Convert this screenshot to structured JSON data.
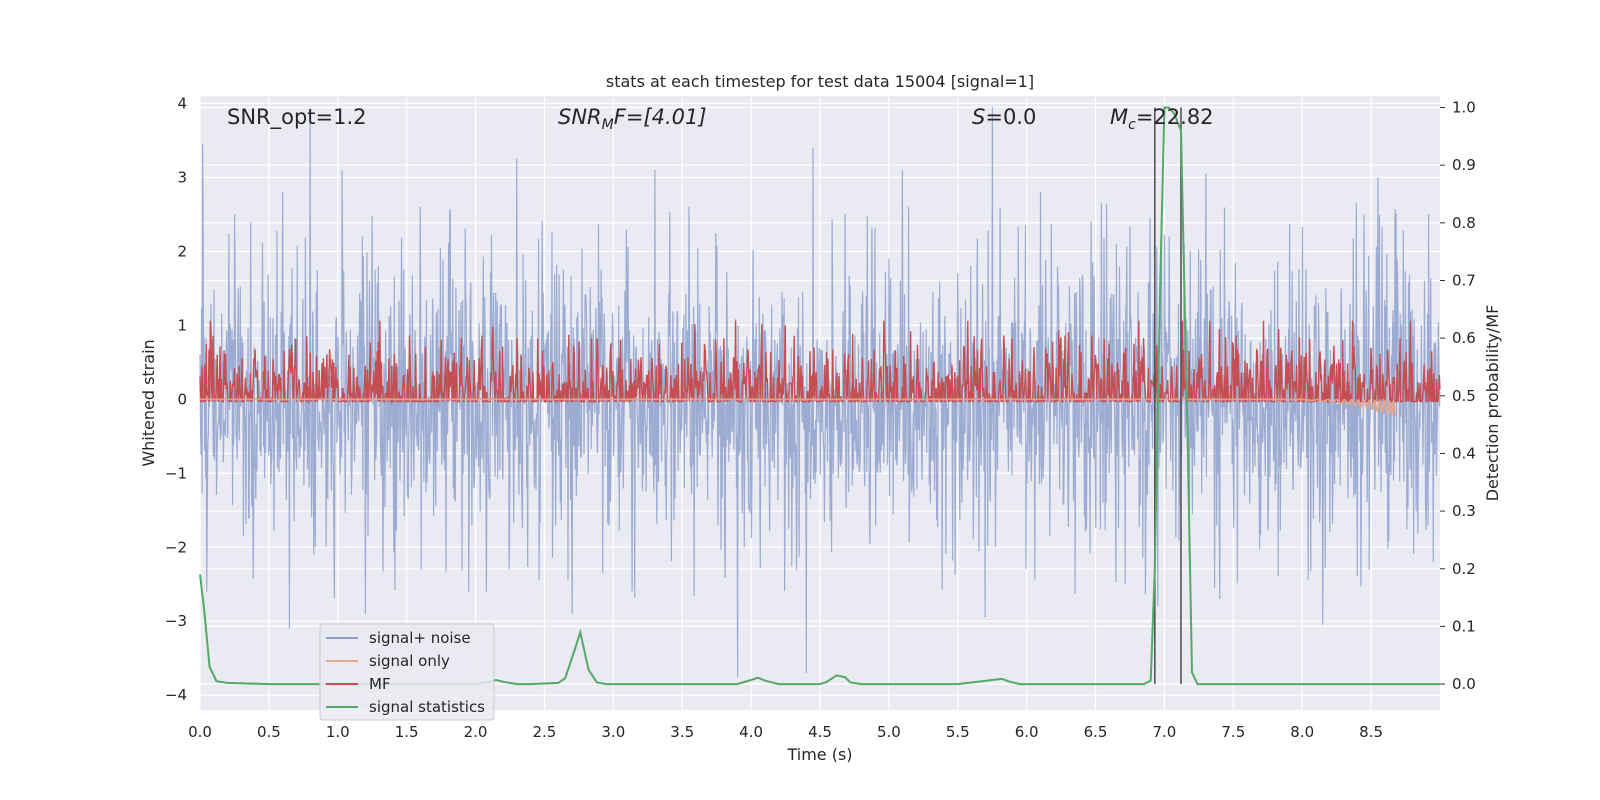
{
  "chart_data": {
    "type": "line",
    "title": "stats at each timestep for test data 15004 [signal=1]",
    "xlabel": "Time (s)",
    "ylabel": "Whitened strain",
    "y2label": "Detection probability/MF",
    "xlim": [
      0.0,
      9.0
    ],
    "ylim": [
      -4.2,
      4.1
    ],
    "y2lim": [
      -0.045,
      1.02
    ],
    "xticks": [
      "0.0",
      "0.5",
      "1.0",
      "1.5",
      "2.0",
      "2.5",
      "3.0",
      "3.5",
      "4.0",
      "4.5",
      "5.0",
      "5.5",
      "6.0",
      "6.5",
      "7.0",
      "7.5",
      "8.0",
      "8.5"
    ],
    "yticks": [
      "4",
      "3",
      "2",
      "1",
      "0",
      "−1",
      "−2",
      "−3",
      "−4"
    ],
    "y2ticks": [
      "1.0",
      "0.9",
      "0.8",
      "0.7",
      "0.6",
      "0.5",
      "0.4",
      "0.3",
      "0.2",
      "0.1",
      "0.0"
    ],
    "grid": true,
    "legend_position": "lower-left",
    "annotations": {
      "snr_opt": "SNR_opt=1.2",
      "snr_mf_var": "SNR",
      "snr_mf_sub": "M",
      "snr_mf_rest": "F=[4.01]",
      "s_var": "S",
      "s_rest": "=0.0",
      "mc_var": "M",
      "mc_sub": "c",
      "mc_rest": "=22.82"
    },
    "detection_window": [
      6.93,
      7.12
    ],
    "series": [
      {
        "name": "signal+ noise",
        "color": "#8da0cb",
        "axis": "left",
        "kind": "noise",
        "upper_peaks": [
          [
            0.02,
            3.45
          ],
          [
            0.25,
            2.5
          ],
          [
            0.6,
            2.8
          ],
          [
            0.8,
            3.75
          ],
          [
            1.03,
            3.1
          ],
          [
            1.6,
            2.6
          ],
          [
            2.3,
            3.25
          ],
          [
            3.3,
            3.1
          ],
          [
            4.45,
            3.4
          ],
          [
            5.1,
            3.1
          ],
          [
            5.75,
            3.95
          ],
          [
            6.1,
            2.8
          ],
          [
            7.3,
            3.05
          ],
          [
            8.55,
            3.0
          ],
          [
            8.95,
            1.8
          ]
        ],
        "lower_peaks": [
          [
            0.05,
            -2.6
          ],
          [
            0.65,
            -3.1
          ],
          [
            1.2,
            -2.9
          ],
          [
            1.95,
            -2.6
          ],
          [
            2.7,
            -2.9
          ],
          [
            3.9,
            -3.75
          ],
          [
            4.4,
            -3.7
          ],
          [
            5.7,
            -2.95
          ],
          [
            6.95,
            -2.8
          ],
          [
            7.4,
            -2.7
          ],
          [
            8.15,
            -3.05
          ],
          [
            8.95,
            -2.2
          ]
        ]
      },
      {
        "name": "signal only",
        "color": "#e8a58a",
        "axis": "left",
        "kind": "chirp",
        "x_range": [
          7.8,
          8.68
        ],
        "min_value": -0.22
      },
      {
        "name": "MF",
        "color": "#c44e52",
        "axis": "left",
        "kind": "band",
        "range": [
          0.05,
          0.9
        ],
        "peaks": [
          [
            2.3,
            0.95
          ],
          [
            2.45,
            0.95
          ],
          [
            2.75,
            0.92
          ],
          [
            3.8,
            0.95
          ],
          [
            6.78,
            0.9
          ],
          [
            7.5,
            0.88
          ]
        ]
      },
      {
        "name": "signal statistics",
        "color": "#55a868",
        "axis": "right",
        "kind": "line",
        "x": [
          0.0,
          0.03,
          0.07,
          0.12,
          0.2,
          0.5,
          1.0,
          1.5,
          2.0,
          2.1,
          2.15,
          2.2,
          2.3,
          2.4,
          2.6,
          2.65,
          2.72,
          2.76,
          2.82,
          2.88,
          2.95,
          3.5,
          3.9,
          4.0,
          4.05,
          4.1,
          4.2,
          4.5,
          4.55,
          4.62,
          4.68,
          4.72,
          4.8,
          5.5,
          5.75,
          5.82,
          5.88,
          5.95,
          6.5,
          6.85,
          6.9,
          6.93,
          6.97,
          7.0,
          7.03,
          7.07,
          7.12,
          7.17,
          7.2,
          7.24,
          7.3,
          8.0,
          9.0
        ],
        "y": [
          0.19,
          0.13,
          0.03,
          0.005,
          0.002,
          0.0,
          0.0,
          0.0,
          0.0,
          0.004,
          0.007,
          0.004,
          0.0,
          0.0,
          0.002,
          0.01,
          0.06,
          0.09,
          0.025,
          0.003,
          0.0,
          0.0,
          0.0,
          0.007,
          0.011,
          0.006,
          0.0,
          0.0,
          0.004,
          0.015,
          0.012,
          0.003,
          0.0,
          0.0,
          0.007,
          0.009,
          0.004,
          0.0,
          0.0,
          0.0,
          0.006,
          0.2,
          0.7,
          1.0,
          1.0,
          0.99,
          0.96,
          0.4,
          0.02,
          0.0,
          0.0,
          0.0,
          0.0
        ]
      }
    ]
  }
}
